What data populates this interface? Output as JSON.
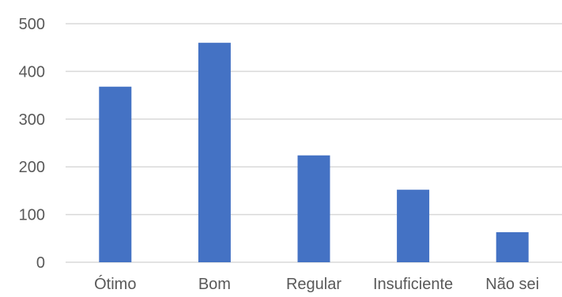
{
  "chart_data": {
    "type": "bar",
    "title": "",
    "xlabel": "",
    "ylabel": "",
    "categories": [
      "Ótimo",
      "Bom",
      "Regular",
      "Insuficiente",
      "Não sei"
    ],
    "values": [
      368,
      460,
      224,
      152,
      63
    ],
    "ylim": [
      0,
      500
    ],
    "yticks": [
      "0",
      "100",
      "200",
      "300",
      "400",
      "500"
    ],
    "grid": true,
    "legend": "none",
    "colors": {
      "bar": "#4472C4",
      "grid": "#D9D9D9",
      "text": "#595959"
    }
  }
}
